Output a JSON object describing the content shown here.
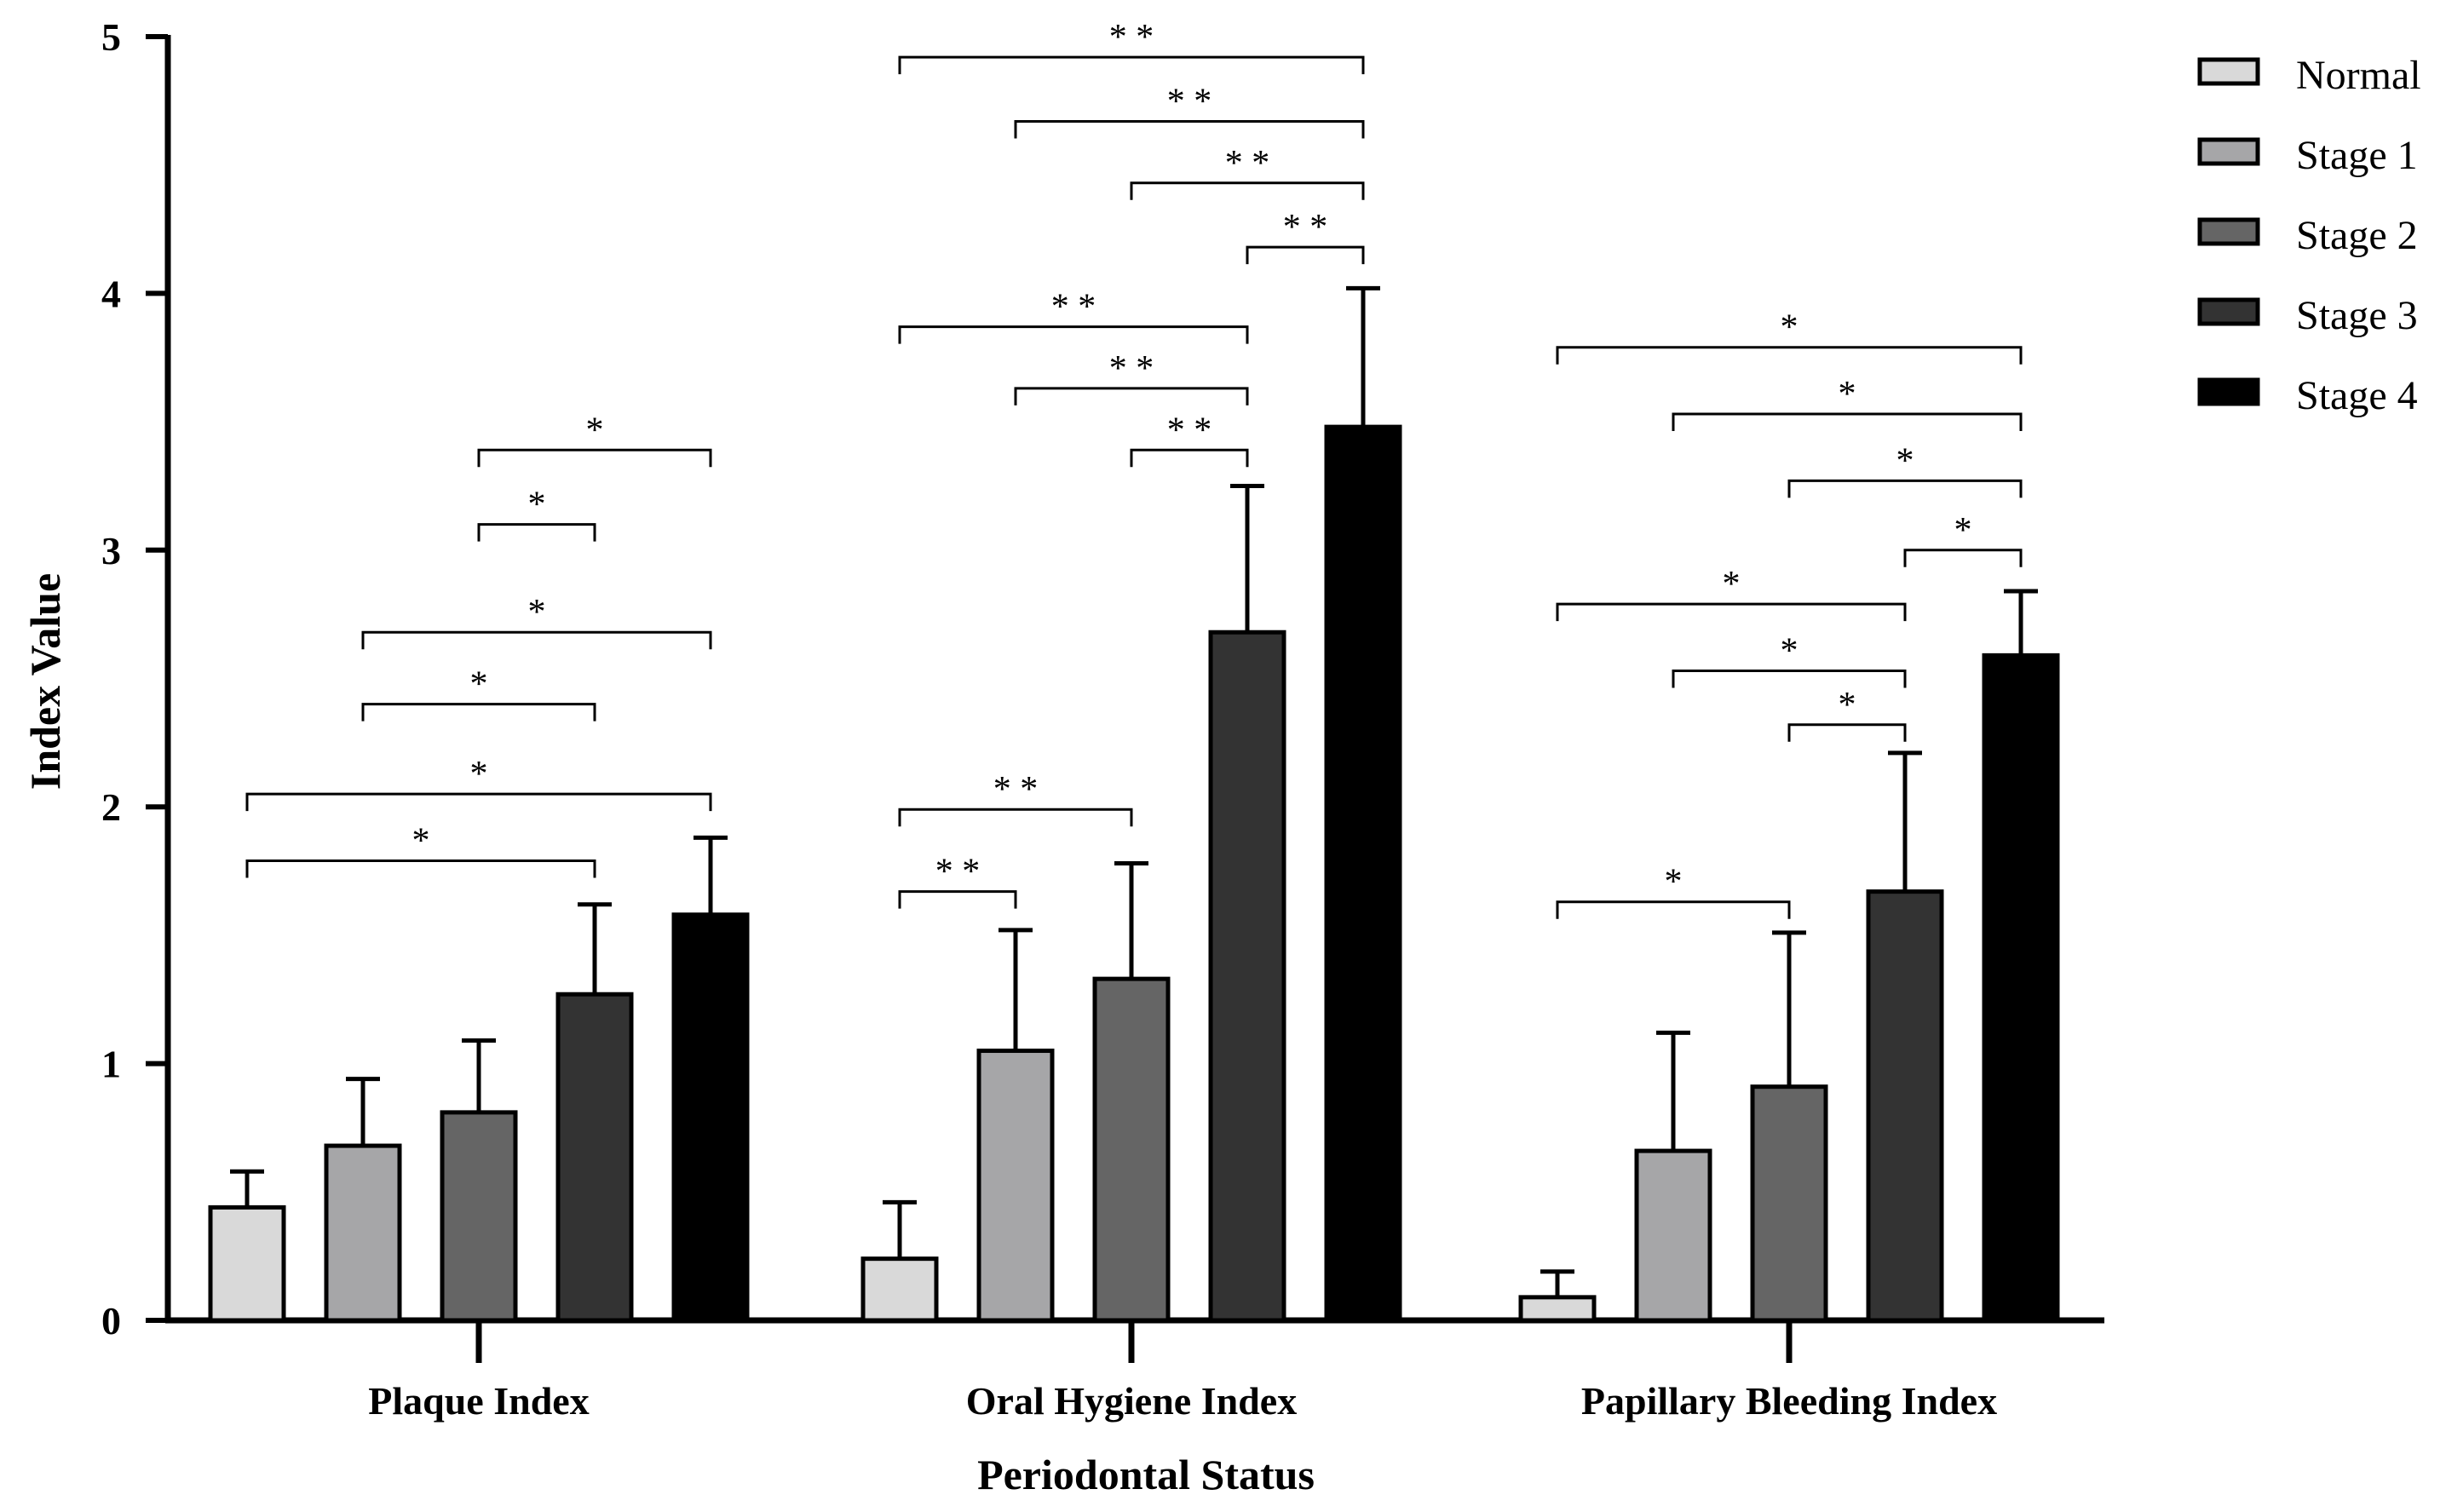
{
  "chart_data": {
    "type": "bar",
    "title": "",
    "xlabel": "Periodontal Status",
    "ylabel": "Index Value",
    "ylim": [
      0,
      5
    ],
    "yticks": [
      "0",
      "1",
      "2",
      "3",
      "4",
      "5"
    ],
    "grid": false,
    "legend_position": "top-right",
    "categories": [
      "Plaque Index",
      "Oral Hygiene Index",
      "Papillary Bleeding Index"
    ],
    "series": [
      {
        "name": "Normal",
        "color": "#d9d9d9",
        "values": [
          0.44,
          0.24,
          0.09
        ],
        "errors": [
          0.14,
          0.22,
          0.1
        ]
      },
      {
        "name": "Stage 1",
        "color": "#a6a6a8",
        "values": [
          0.68,
          1.05,
          0.66
        ],
        "errors": [
          0.26,
          0.47,
          0.46
        ]
      },
      {
        "name": "Stage 2",
        "color": "#656565",
        "values": [
          0.81,
          1.33,
          0.91
        ],
        "errors": [
          0.28,
          0.45,
          0.6
        ]
      },
      {
        "name": "Stage 3",
        "color": "#333333",
        "values": [
          1.27,
          2.68,
          1.67
        ],
        "errors": [
          0.35,
          0.57,
          0.54
        ]
      },
      {
        "name": "Stage 4",
        "color": "#000000",
        "values": [
          1.58,
          3.48,
          2.59
        ],
        "errors": [
          0.3,
          0.54,
          0.25
        ]
      }
    ],
    "significance": [
      {
        "category": 0,
        "from": 0,
        "to": 3,
        "y": 1.79,
        "label": "*"
      },
      {
        "category": 0,
        "from": 0,
        "to": 4,
        "y": 2.05,
        "label": "*"
      },
      {
        "category": 0,
        "from": 1,
        "to": 3,
        "y": 2.4,
        "label": "*"
      },
      {
        "category": 0,
        "from": 1,
        "to": 4,
        "y": 2.68,
        "label": "*"
      },
      {
        "category": 0,
        "from": 2,
        "to": 3,
        "y": 3.1,
        "label": "*"
      },
      {
        "category": 0,
        "from": 2,
        "to": 4,
        "y": 3.39,
        "label": "*"
      },
      {
        "category": 1,
        "from": 0,
        "to": 1,
        "y": 1.67,
        "label": "* *"
      },
      {
        "category": 1,
        "from": 0,
        "to": 2,
        "y": 1.99,
        "label": "* *"
      },
      {
        "category": 1,
        "from": 2,
        "to": 3,
        "y": 3.39,
        "label": "* *"
      },
      {
        "category": 1,
        "from": 1,
        "to": 3,
        "y": 3.63,
        "label": "* *"
      },
      {
        "category": 1,
        "from": 0,
        "to": 3,
        "y": 3.87,
        "label": "* *"
      },
      {
        "category": 1,
        "from": 3,
        "to": 4,
        "y": 4.18,
        "label": "* *"
      },
      {
        "category": 1,
        "from": 2,
        "to": 4,
        "y": 4.43,
        "label": "* *"
      },
      {
        "category": 1,
        "from": 1,
        "to": 4,
        "y": 4.67,
        "label": "* *"
      },
      {
        "category": 1,
        "from": 0,
        "to": 4,
        "y": 4.92,
        "label": "* *"
      },
      {
        "category": 2,
        "from": 0,
        "to": 2,
        "y": 1.63,
        "label": "*"
      },
      {
        "category": 2,
        "from": 2,
        "to": 3,
        "y": 2.32,
        "label": "*"
      },
      {
        "category": 2,
        "from": 1,
        "to": 3,
        "y": 2.53,
        "label": "*"
      },
      {
        "category": 2,
        "from": 0,
        "to": 3,
        "y": 2.79,
        "label": "*"
      },
      {
        "category": 2,
        "from": 3,
        "to": 4,
        "y": 3.0,
        "label": "*"
      },
      {
        "category": 2,
        "from": 2,
        "to": 4,
        "y": 3.27,
        "label": "*"
      },
      {
        "category": 2,
        "from": 1,
        "to": 4,
        "y": 3.53,
        "label": "*"
      },
      {
        "category": 2,
        "from": 0,
        "to": 4,
        "y": 3.79,
        "label": "*"
      }
    ]
  }
}
